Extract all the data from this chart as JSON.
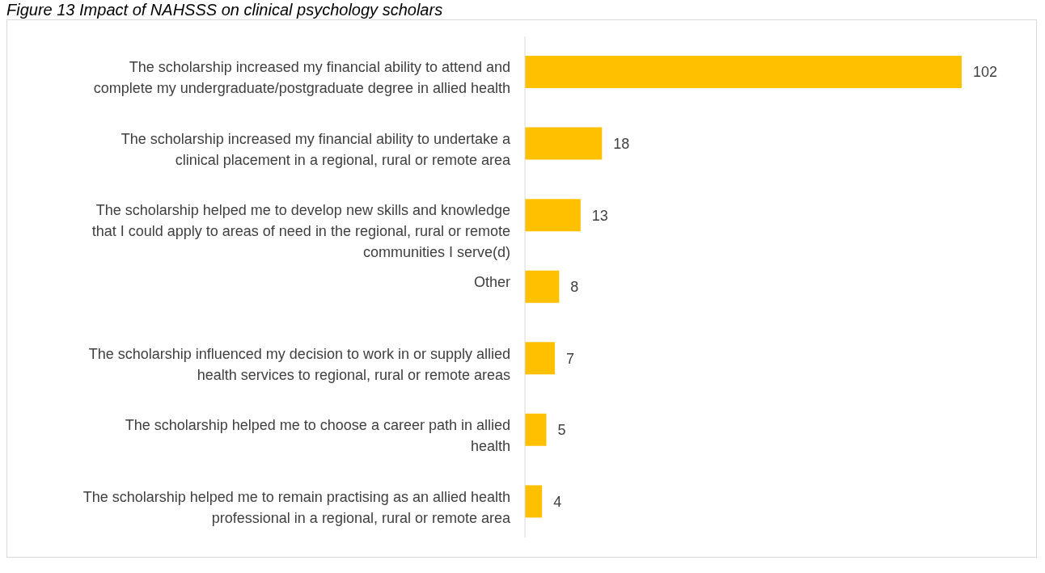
{
  "chart_data": {
    "type": "bar",
    "orientation": "horizontal",
    "title": "Figure 13 Impact of NAHSSS on clinical psychology scholars",
    "categories": [
      "The scholarship increased my financial ability to attend and complete my undergraduate/postgraduate degree in allied health",
      "The scholarship increased my financial ability to undertake a clinical placement in a regional, rural or remote area",
      "The scholarship helped me to develop new skills and knowledge that I could apply to areas of need in the regional, rural or remote communities I serve(d)",
      "Other",
      "The scholarship influenced my decision to work in or supply allied health services to regional, rural or remote areas",
      "The scholarship helped me to choose a career path in allied health",
      "The scholarship helped me to remain practising as an allied health professional in a regional, rural or remote area"
    ],
    "values": [
      102,
      18,
      13,
      8,
      7,
      5,
      4
    ],
    "color": "#ffc000",
    "data_labels": true
  }
}
